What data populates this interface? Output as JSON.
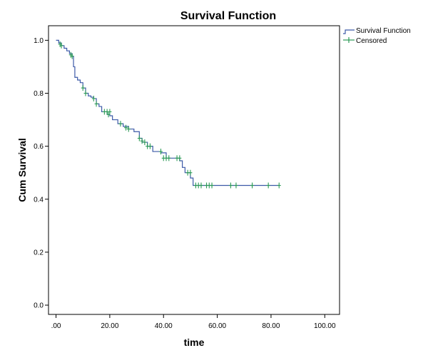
{
  "chart_data": {
    "type": "line",
    "title": "Survival Function",
    "xlabel": "time",
    "ylabel": "Cum Survival",
    "xlim": [
      -2.8,
      105.5
    ],
    "ylim": [
      -0.035,
      1.055
    ],
    "x_ticks": [
      0,
      20,
      40,
      60,
      80,
      100
    ],
    "x_tick_labels": [
      ".00",
      "20.00",
      "40.00",
      "60.00",
      "80.00",
      "100.00"
    ],
    "y_ticks": [
      0,
      0.2,
      0.4,
      0.6,
      0.8,
      1.0
    ],
    "y_tick_labels": [
      "0.0",
      "0.2",
      "0.4",
      "0.6",
      "0.8",
      "1.0"
    ],
    "grid": false,
    "legend_position": "top-right-outside",
    "colors": {
      "survival": "#3c5aa8",
      "censored": "#2b9a55"
    },
    "series": [
      {
        "name": "Survival Function",
        "style": "step",
        "x": [
          0,
          1,
          2,
          3,
          4,
          5,
          6,
          6.5,
          7,
          8,
          9,
          10,
          11,
          12,
          13,
          14,
          15,
          16,
          17,
          19,
          20,
          21,
          23,
          25,
          27,
          29,
          31,
          32,
          34,
          36,
          39,
          41,
          44,
          46,
          47,
          48,
          50,
          51,
          83
        ],
        "y": [
          1.0,
          0.99,
          0.98,
          0.97,
          0.96,
          0.95,
          0.94,
          0.9,
          0.86,
          0.85,
          0.84,
          0.82,
          0.8,
          0.79,
          0.785,
          0.78,
          0.76,
          0.75,
          0.73,
          0.72,
          0.715,
          0.7,
          0.685,
          0.675,
          0.665,
          0.655,
          0.63,
          0.615,
          0.6,
          0.58,
          0.575,
          0.555,
          0.555,
          0.545,
          0.52,
          0.5,
          0.48,
          0.452,
          0.452
        ]
      },
      {
        "name": "Censored",
        "style": "marker",
        "x": [
          1.5,
          2,
          5.5,
          6,
          10,
          11,
          14,
          15,
          18,
          19,
          19.5,
          20,
          24,
          26,
          27,
          31,
          32,
          33,
          34,
          35,
          39,
          40,
          41,
          42,
          45,
          46,
          49,
          50,
          52,
          53,
          54,
          56,
          57,
          58,
          65,
          67,
          73,
          79,
          83
        ],
        "y": [
          0.985,
          0.98,
          0.945,
          0.94,
          0.82,
          0.8,
          0.78,
          0.76,
          0.73,
          0.73,
          0.72,
          0.73,
          0.685,
          0.67,
          0.665,
          0.63,
          0.62,
          0.615,
          0.6,
          0.6,
          0.58,
          0.555,
          0.555,
          0.555,
          0.555,
          0.555,
          0.5,
          0.5,
          0.452,
          0.452,
          0.452,
          0.452,
          0.452,
          0.452,
          0.452,
          0.452,
          0.452,
          0.452,
          0.452
        ]
      }
    ]
  }
}
